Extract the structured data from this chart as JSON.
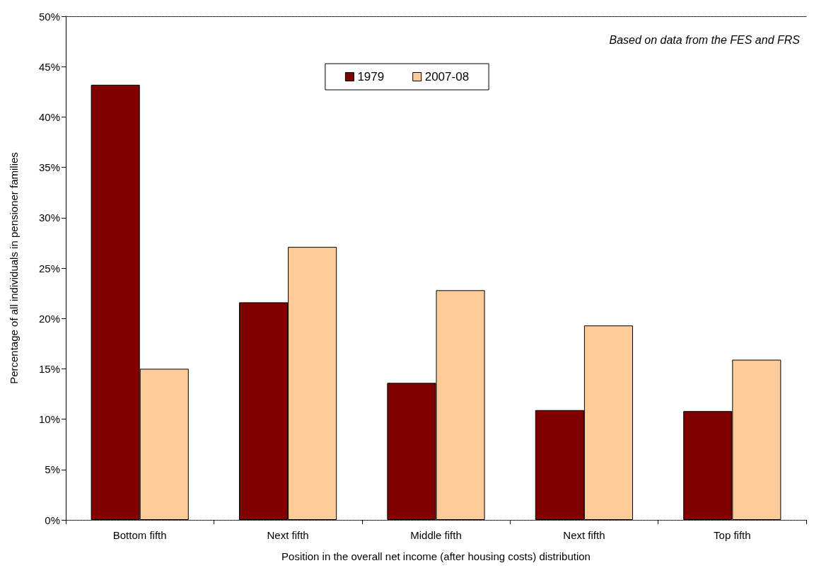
{
  "chart_data": {
    "type": "bar",
    "xlabel": "Position in the overall net income (after housing costs) distribution",
    "ylabel": "Percentage of all individuals in pensioner families",
    "categories": [
      "Bottom fifth",
      "Next fifth",
      "Middle fifth",
      "Next fifth",
      "Top fifth"
    ],
    "series": [
      {
        "name": "1979",
        "color": "#800000",
        "values": [
          43.2,
          21.6,
          13.6,
          10.9,
          10.8
        ]
      },
      {
        "name": "2007-08",
        "color": "#ffcc99",
        "values": [
          15.0,
          27.1,
          22.8,
          19.3,
          15.9
        ]
      }
    ],
    "ylim": [
      0,
      50
    ],
    "yticks": [
      {
        "value": 0,
        "label": "0%"
      },
      {
        "value": 5,
        "label": "5%"
      },
      {
        "value": 10,
        "label": "10%"
      },
      {
        "value": 15,
        "label": "15%"
      },
      {
        "value": 20,
        "label": "20%"
      },
      {
        "value": 25,
        "label": "25%"
      },
      {
        "value": 30,
        "label": "30%"
      },
      {
        "value": 35,
        "label": "35%"
      },
      {
        "value": 40,
        "label": "40%"
      },
      {
        "value": 45,
        "label": "45%"
      },
      {
        "value": 50,
        "label": "50%"
      }
    ],
    "annotations": [
      "Based on data from the FES and FRS"
    ],
    "grid": false,
    "legend": "top"
  }
}
